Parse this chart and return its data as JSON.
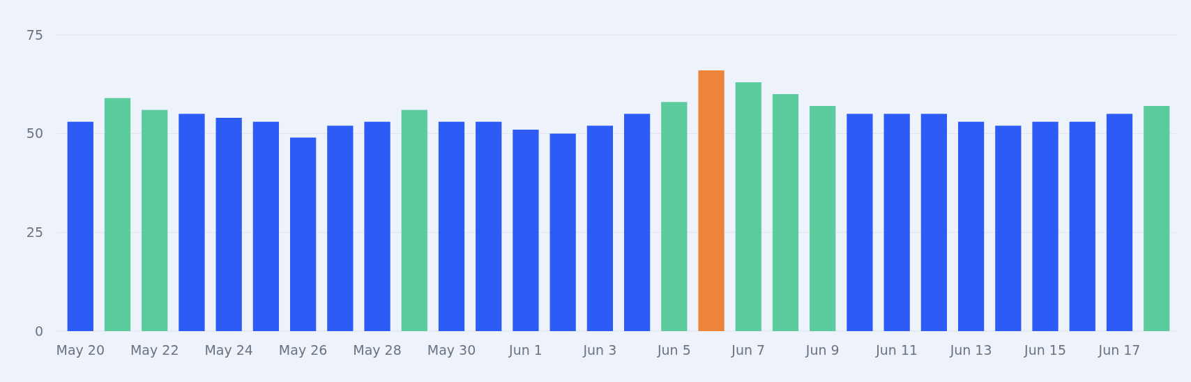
{
  "chart_data": {
    "type": "bar",
    "categories": [
      "May 20",
      null,
      "May 22",
      null,
      "May 24",
      null,
      "May 26",
      null,
      "May 28",
      null,
      "May 30",
      null,
      "Jun 1",
      null,
      "Jun 3",
      null,
      "Jun 5",
      null,
      "Jun 7",
      null,
      "Jun 9",
      null,
      "Jun 11",
      null,
      "Jun 13",
      null,
      "Jun 15",
      null,
      "Jun 17",
      null
    ],
    "values": [
      53,
      59,
      56,
      55,
      54,
      53,
      49,
      52,
      53,
      56,
      53,
      53,
      51,
      50,
      52,
      55,
      58,
      66,
      63,
      60,
      57,
      55,
      55,
      55,
      53,
      52,
      53,
      53,
      55,
      57
    ],
    "colors": [
      "#2d5bf5",
      "#5ccb9e",
      "#5ccb9e",
      "#2d5bf5",
      "#2d5bf5",
      "#2d5bf5",
      "#2d5bf5",
      "#2d5bf5",
      "#2d5bf5",
      "#5ccb9e",
      "#2d5bf5",
      "#2d5bf5",
      "#2d5bf5",
      "#2d5bf5",
      "#2d5bf5",
      "#2d5bf5",
      "#5ccb9e",
      "#ee843a",
      "#5ccb9e",
      "#5ccb9e",
      "#5ccb9e",
      "#2d5bf5",
      "#2d5bf5",
      "#2d5bf5",
      "#2d5bf5",
      "#2d5bf5",
      "#2d5bf5",
      "#2d5bf5",
      "#2d5bf5",
      "#5ccb9e"
    ],
    "ylim": [
      0,
      75
    ],
    "yticks": [
      0,
      25,
      50,
      75
    ],
    "grid": "y"
  }
}
